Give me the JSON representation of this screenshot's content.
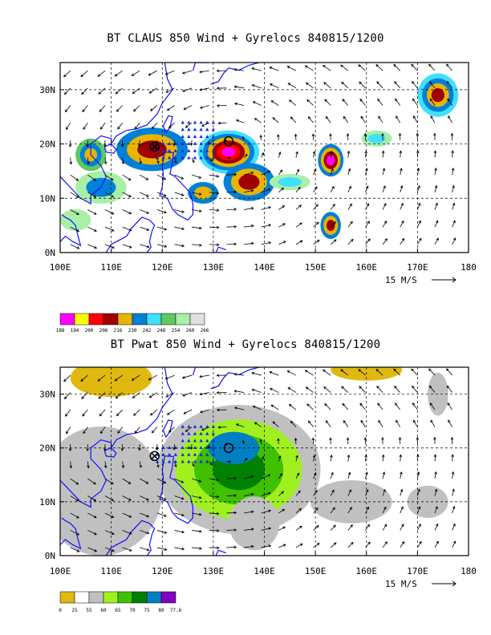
{
  "chart_data": [
    {
      "type": "heatmap",
      "title": "BT CLAUS 850 Wind + Gyrelocs 840815/1200",
      "x_ticks": [
        "100E",
        "110E",
        "120E",
        "130E",
        "140E",
        "150E",
        "160E",
        "170E",
        "180"
      ],
      "y_ticks": [
        "0N",
        "10N",
        "20N",
        "30N"
      ],
      "xlim": [
        100,
        180
      ],
      "ylim": [
        0,
        35
      ],
      "grid": true,
      "reference_vector_label": "15 M/S",
      "colorbar_labels": [
        "188",
        "194",
        "200",
        "206",
        "216",
        "230",
        "242",
        "248",
        "254",
        "260",
        "266"
      ],
      "colorbar_colors": [
        "#ff00ff",
        "#ffff00",
        "#ff0000",
        "#a00000",
        "#e8b400",
        "#0080d8",
        "#40e0ff",
        "#60c860",
        "#a8f0a8",
        "#e0e0e0"
      ],
      "gyrelocs": [
        {
          "lon": 118.5,
          "lat": 19.5,
          "symbol": "circle-x"
        },
        {
          "lon": 133,
          "lat": 20.5,
          "symbol": "circle"
        }
      ]
    },
    {
      "type": "heatmap",
      "title": "BT Pwat 850 Wind + Gyrelocs 840815/1200",
      "x_ticks": [
        "100E",
        "110E",
        "120E",
        "130E",
        "140E",
        "150E",
        "160E",
        "170E",
        "180"
      ],
      "y_ticks": [
        "0N",
        "10N",
        "20N",
        "30N"
      ],
      "xlim": [
        100,
        180
      ],
      "ylim": [
        0,
        35
      ],
      "grid": true,
      "reference_vector_label": "15 M/S",
      "colorbar_labels": [
        "0",
        "25",
        "55",
        "60",
        "65",
        "70",
        "75",
        "80",
        "77.6"
      ],
      "colorbar_colors": [
        "#e0b810",
        "#ffffff",
        "#c0c0c0",
        "#a0f020",
        "#40c000",
        "#008000",
        "#0080c0",
        "#8000c0"
      ],
      "gyrelocs": [
        {
          "lon": 118.5,
          "lat": 18.5,
          "symbol": "circle-x"
        },
        {
          "lon": 133,
          "lat": 20,
          "symbol": "circle"
        }
      ]
    }
  ]
}
